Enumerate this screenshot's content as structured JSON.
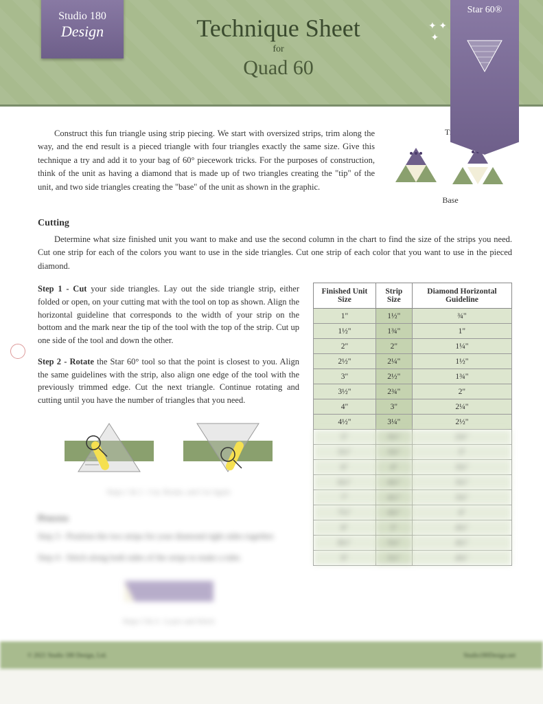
{
  "header": {
    "logo_line1": "Studio 180",
    "logo_line2": "Design",
    "title_main": "Technique Sheet",
    "title_for": "for",
    "title_sub": "Quad 60",
    "product_name": "Star 60®"
  },
  "intro": {
    "text": "Construct this fun triangle using strip piecing. We start with oversized strips, trim along the way, and the end result is a pieced triangle with four triangles exactly the same size. Give this technique a try and add it to your bag of 60° piecework tricks. For the purposes of construction, think of the unit as having a diamond that is made up of two triangles creating the \"tip\" of the unit, and two side triangles creating the \"base\" of the unit as shown in the graphic.",
    "tip_label": "Tip",
    "base_label": "Base"
  },
  "cutting": {
    "heading": "Cutting",
    "intro": "Determine what size finished unit you want to make and use the second column in the chart to find the size of the strips you need. Cut one strip for each of the colors you want to use in the side triangles. Cut one strip of each color that you want to use in the pieced diamond.",
    "step1_label": "Step 1",
    "step1_bold": "Cut",
    "step1_text": " your side triangles. Lay out the side triangle strip, either folded or open, on your cutting mat with the tool on top as shown. Align the horizontal guideline that corresponds to the width of your strip on the bottom and the mark near the tip of the tool with the top of the strip. Cut up one side of the tool and down the other.",
    "step2_label": "Step 2",
    "step2_bold": "Rotate",
    "step2_text": " the Star 60° tool so that the point is closest to you. Align the same guidelines with the strip, also align one edge of the tool with the previously trimmed edge. Cut the next triangle. Continue rotating and cutting until you have the number of triangles that you need.",
    "dia12_caption": "Steps 1 & 2 - Cut, Rotate, and Cut Again"
  },
  "process": {
    "heading": "Process",
    "step3": "Step 3 - Position the two strips for your diamond right sides together.",
    "step4": "Step 4 - Stitch along both sides of the strips to make a tube.",
    "dia34_caption": "Steps 3 & 4 - Layer and Stitch"
  },
  "table": {
    "headers": [
      "Finished Unit Size",
      "Strip Size",
      "Diamond Horizontal Guideline"
    ],
    "rows": [
      [
        "1\"",
        "1½\"",
        "¾\""
      ],
      [
        "1½\"",
        "1¾\"",
        "1\""
      ],
      [
        "2\"",
        "2\"",
        "1¼\""
      ],
      [
        "2½\"",
        "2¼\"",
        "1½\""
      ],
      [
        "3\"",
        "2½\"",
        "1¾\""
      ],
      [
        "3½\"",
        "2¾\"",
        "2\""
      ],
      [
        "4\"",
        "3\"",
        "2¼\""
      ],
      [
        "4½\"",
        "3¼\"",
        "2½\""
      ],
      [
        "5\"",
        "3½\"",
        "2¾\""
      ],
      [
        "5½\"",
        "3¾\"",
        "3\""
      ],
      [
        "6\"",
        "4\"",
        "3¼\""
      ],
      [
        "6½\"",
        "4¼\"",
        "3½\""
      ],
      [
        "7\"",
        "4½\"",
        "3¾\""
      ],
      [
        "7½\"",
        "4¾\"",
        "4\""
      ],
      [
        "8\"",
        "5\"",
        "4¼\""
      ],
      [
        "8½\"",
        "5¼\"",
        "4½\""
      ],
      [
        "9\"",
        "5½\"",
        "4¾\""
      ]
    ]
  },
  "footer": {
    "left": "© 2021 Studio 180 Design, Ltd.",
    "right": "Studio180Design.net"
  },
  "colors": {
    "header_bg": "#a8bb8e",
    "ribbon": "#7a6b95",
    "tri_purple": "#6e5f8a",
    "tri_green": "#8aa06e",
    "tri_cream": "#f2eed8"
  }
}
